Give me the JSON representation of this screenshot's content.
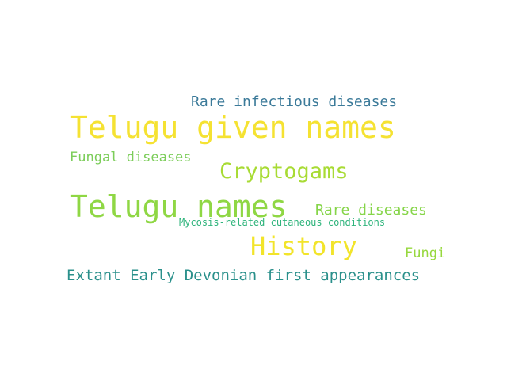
{
  "words": [
    {
      "text": "Rare infectious diseases",
      "color": "#3b7a99"
    },
    {
      "text": "Telugu given names",
      "color": "#f5e232"
    },
    {
      "text": "Fungal diseases",
      "color": "#7ccd5a"
    },
    {
      "text": "Cryptogams",
      "color": "#a8db34"
    },
    {
      "text": "Telugu names",
      "color": "#8fd744"
    },
    {
      "text": "Rare diseases",
      "color": "#86d549"
    },
    {
      "text": "Mycosis-related cutaneous conditions",
      "color": "#2fb47c"
    },
    {
      "text": "History",
      "color": "#f2e42a"
    },
    {
      "text": "Fungi",
      "color": "#97d83e"
    },
    {
      "text": "Extant Early Devonian first appearances",
      "color": "#2a908b"
    }
  ]
}
